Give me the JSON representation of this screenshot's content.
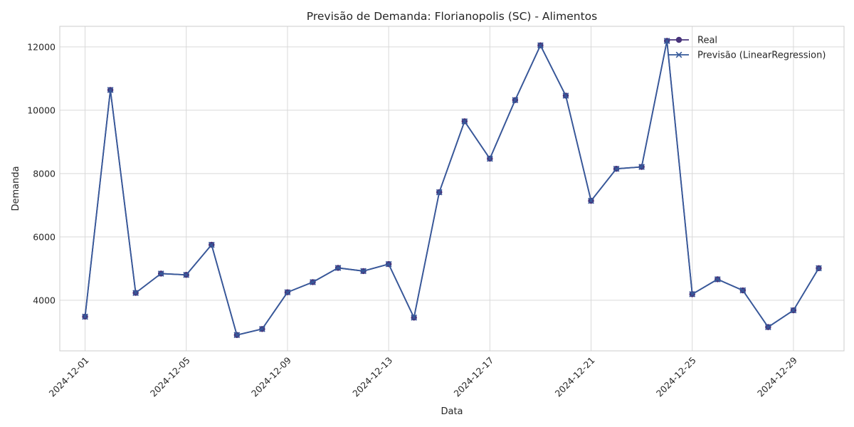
{
  "chart_data": {
    "type": "line",
    "title": "Previsão de Demanda: Florianopolis (SC) - Alimentos",
    "xlabel": "Data",
    "ylabel": "Demanda",
    "x": [
      "2024-12-01",
      "2024-12-02",
      "2024-12-03",
      "2024-12-04",
      "2024-12-05",
      "2024-12-06",
      "2024-12-07",
      "2024-12-08",
      "2024-12-09",
      "2024-12-10",
      "2024-12-11",
      "2024-12-12",
      "2024-12-13",
      "2024-12-14",
      "2024-12-15",
      "2024-12-16",
      "2024-12-17",
      "2024-12-18",
      "2024-12-19",
      "2024-12-20",
      "2024-12-21",
      "2024-12-22",
      "2024-12-23",
      "2024-12-24",
      "2024-12-25",
      "2024-12-26",
      "2024-12-27",
      "2024-12-28",
      "2024-12-29",
      "2024-12-30"
    ],
    "x_ticks": [
      "2024-12-01",
      "2024-12-05",
      "2024-12-09",
      "2024-12-13",
      "2024-12-17",
      "2024-12-21",
      "2024-12-25",
      "2024-12-29"
    ],
    "x_range": [
      "2024-11-30",
      "2024-12-31"
    ],
    "y_ticks": [
      4000,
      6000,
      8000,
      10000,
      12000
    ],
    "ylim": [
      2400,
      12650
    ],
    "grid": true,
    "legend_position": "top-right",
    "series": [
      {
        "name": "Real",
        "marker": "circle",
        "color": "#48347b",
        "values": [
          3480,
          10640,
          4230,
          4840,
          4800,
          5750,
          2900,
          3090,
          4250,
          4570,
          5020,
          4920,
          5140,
          3450,
          7410,
          9650,
          8470,
          10320,
          12050,
          10460,
          7140,
          8150,
          8210,
          12190,
          4190,
          4660,
          4310,
          3150,
          3680,
          5010
        ]
      },
      {
        "name": "Previsão (LinearRegression)",
        "marker": "x",
        "color": "#36599a",
        "values": [
          3480,
          10640,
          4230,
          4840,
          4800,
          5750,
          2900,
          3090,
          4250,
          4570,
          5020,
          4920,
          5140,
          3450,
          7410,
          9650,
          8470,
          10320,
          12050,
          10460,
          7140,
          8150,
          8210,
          12190,
          4190,
          4660,
          4310,
          3150,
          3680,
          5010
        ]
      }
    ]
  }
}
